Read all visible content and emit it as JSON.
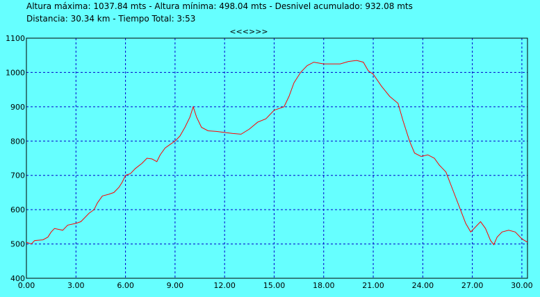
{
  "chart_data": {
    "type": "line",
    "title": "Altura máxima: 1037.84 mts - Altura mínima: 498.04 mts - Desnivel acumulado: 932.08 mts",
    "subtitle": "Distancia: 30.34 km - Tiempo Total: 3:53",
    "annotation": "<<<>>>",
    "x": [
      0,
      0.3,
      0.5,
      1,
      1.3,
      1.5,
      1.7,
      2.2,
      2.5,
      3,
      3.3,
      3.5,
      3.8,
      4.1,
      4.3,
      4.6,
      5,
      5.3,
      5.6,
      5.8,
      6,
      6.3,
      6.6,
      7,
      7.3,
      7.6,
      7.9,
      8.1,
      8.4,
      8.7,
      9,
      9.3,
      9.6,
      9.9,
      10.1,
      10.3,
      10.6,
      11,
      11.5,
      12,
      12.5,
      13,
      13.5,
      14,
      14.5,
      15,
      15.3,
      15.6,
      15.9,
      16.2,
      16.6,
      17,
      17.4,
      18,
      18.5,
      19,
      19.5,
      20,
      20.4,
      20.7,
      21,
      21.5,
      22,
      22.5,
      22.8,
      23.2,
      23.5,
      23.9,
      24.3,
      24.7,
      25,
      25.4,
      25.8,
      26.2,
      26.6,
      26.9,
      27.2,
      27.5,
      27.8,
      28.1,
      28.3,
      28.5,
      28.8,
      29.2,
      29.6,
      30,
      30.34
    ],
    "y": [
      505,
      500,
      510,
      512,
      520,
      535,
      545,
      540,
      555,
      560,
      565,
      575,
      590,
      600,
      620,
      640,
      645,
      650,
      665,
      680,
      700,
      705,
      720,
      735,
      750,
      748,
      740,
      760,
      780,
      790,
      800,
      815,
      840,
      870,
      900,
      870,
      840,
      830,
      828,
      825,
      822,
      820,
      835,
      855,
      865,
      890,
      895,
      900,
      930,
      970,
      1000,
      1020,
      1030,
      1025,
      1025,
      1025,
      1032,
      1035,
      1030,
      1005,
      995,
      960,
      930,
      910,
      860,
      800,
      765,
      755,
      760,
      750,
      730,
      710,
      660,
      610,
      560,
      535,
      550,
      565,
      545,
      510,
      498,
      520,
      535,
      540,
      535,
      515,
      505
    ],
    "color": "#ff0000",
    "xlim": [
      0,
      30.34
    ],
    "ylim": [
      400,
      1100
    ],
    "xticks": [
      {
        "value": 0,
        "label": "0.00"
      },
      {
        "value": 3,
        "label": "3.00"
      },
      {
        "value": 6,
        "label": "6.00"
      },
      {
        "value": 9,
        "label": "9.00"
      },
      {
        "value": 12,
        "label": "12.00"
      },
      {
        "value": 15,
        "label": "15.00"
      },
      {
        "value": 18,
        "label": "18.00"
      },
      {
        "value": 21,
        "label": "21.00"
      },
      {
        "value": 24,
        "label": "24.00"
      },
      {
        "value": 27,
        "label": "27.00"
      },
      {
        "value": 30,
        "label": "30.00"
      }
    ],
    "yticks": [
      400,
      500,
      600,
      700,
      800,
      900,
      1000,
      1100
    ],
    "grid": true
  }
}
